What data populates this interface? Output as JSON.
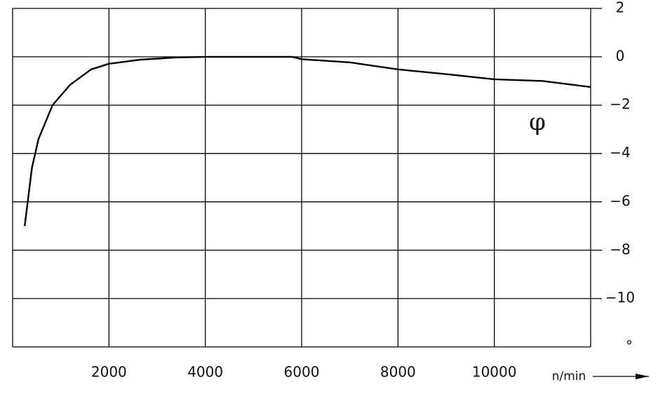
{
  "chart_data": {
    "type": "line",
    "x_axis_label": "n/min",
    "y_axis_label": "°",
    "annotation": "φ",
    "x": [
      250,
      400,
      538,
      829,
      1193,
      1629,
      2000,
      2647,
      3375,
      4000,
      5000,
      5800,
      6000,
      7000,
      8000,
      9000,
      10000,
      11000,
      12000
    ],
    "series": [
      {
        "color": "#000000",
        "values": [
          -7.0,
          -4.6,
          -3.4,
          -2.0,
          -1.16,
          -0.52,
          -0.29,
          -0.12,
          -0.03,
          0,
          0,
          0,
          -0.1,
          -0.23,
          -0.52,
          -0.72,
          -0.93,
          -1.0,
          -1.25
        ]
      }
    ],
    "xlim": [
      0,
      12000
    ],
    "xticks": [
      2000,
      4000,
      6000,
      8000,
      10000
    ],
    "ylim": [
      -12,
      2
    ],
    "yticks": [
      2,
      0,
      {
        "value": -2,
        "label": "−2"
      },
      {
        "value": -4,
        "label": "−4"
      },
      {
        "value": -6,
        "label": "−6"
      },
      {
        "value": -8,
        "label": "−8"
      },
      {
        "value": -10,
        "label": "−10"
      }
    ],
    "grid": true
  }
}
